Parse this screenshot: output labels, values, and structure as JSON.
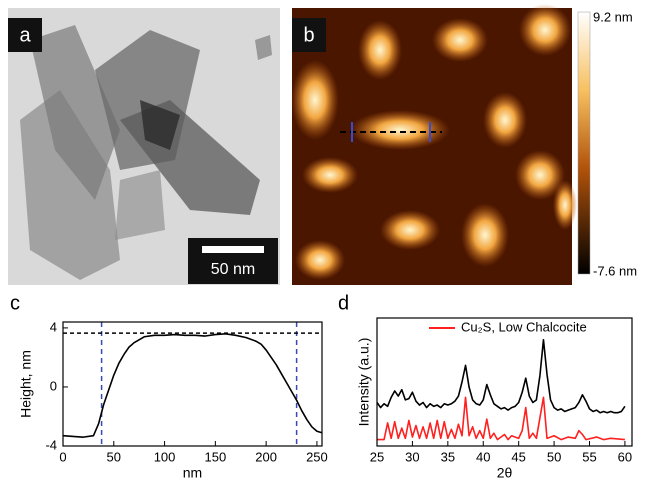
{
  "figure": {
    "panel_a": {
      "label": "a",
      "scale_bar": "50 nm"
    },
    "panel_b": {
      "label": "b",
      "colorbar_max": "9.2 nm",
      "colorbar_min": "-7.6 nm"
    },
    "panel_c": {
      "label": "c"
    },
    "panel_d": {
      "label": "d"
    }
  },
  "chart_data": [
    {
      "type": "line",
      "xlabel": "nm",
      "ylabel": "Height, nm",
      "x": [
        0,
        10,
        20,
        30,
        35,
        40,
        45,
        50,
        55,
        60,
        65,
        70,
        80,
        90,
        100,
        110,
        120,
        130,
        140,
        150,
        160,
        170,
        180,
        190,
        195,
        200,
        205,
        210,
        215,
        220,
        225,
        230,
        235,
        240,
        245,
        250,
        255
      ],
      "series": [
        {
          "color": "#000000",
          "values": [
            -3.3,
            -3.35,
            -3.4,
            -3.3,
            -2.5,
            -1.2,
            -0.2,
            0.8,
            1.6,
            2.2,
            2.7,
            3.0,
            3.4,
            3.5,
            3.5,
            3.55,
            3.5,
            3.5,
            3.45,
            3.55,
            3.6,
            3.5,
            3.35,
            3.1,
            2.9,
            2.5,
            2.0,
            1.5,
            0.9,
            0.3,
            -0.3,
            -0.9,
            -1.6,
            -2.2,
            -2.7,
            -3.0,
            -3.1
          ]
        }
      ],
      "reference_lines": {
        "x": [
          38,
          230
        ],
        "y": [
          3.65
        ],
        "x_color": "#3a4bb0",
        "y_color": "#000000"
      },
      "xlim": [
        0,
        255
      ],
      "ylim": [
        -4,
        4.4
      ],
      "xticks": [
        0,
        50,
        100,
        150,
        200,
        250
      ],
      "yticks": [
        -4,
        0,
        4
      ]
    },
    {
      "type": "line",
      "xlabel": "2θ",
      "ylabel": "Intensity (a.u.)",
      "legend": "upper right",
      "series": [
        {
          "color": "#000000",
          "x": [
            25,
            25.5,
            26,
            26.5,
            27,
            27.5,
            28,
            28.5,
            29,
            29.5,
            30,
            30.5,
            31,
            31.5,
            32,
            32.5,
            33,
            33.5,
            34,
            34.5,
            35,
            35.5,
            36,
            36.5,
            37,
            37.5,
            38,
            38.5,
            39,
            39.5,
            40,
            40.5,
            41,
            41.5,
            42,
            42.5,
            43,
            43.5,
            44,
            44.5,
            45,
            45.5,
            46,
            46.5,
            47,
            47.5,
            48,
            48.5,
            49,
            49.5,
            50,
            50.5,
            51,
            51.5,
            52,
            52.5,
            53,
            53.5,
            54,
            54.5,
            55,
            55.5,
            56,
            56.5,
            57,
            57.5,
            58,
            58.5,
            59,
            59.5,
            60
          ],
          "values": [
            3.4,
            3.0,
            3.3,
            3.1,
            3.8,
            4.3,
            3.9,
            4.4,
            3.6,
            3.7,
            4.2,
            3.5,
            3.2,
            3.4,
            3.0,
            3.3,
            3.1,
            3.2,
            3.0,
            3.3,
            3.2,
            3.3,
            3.5,
            3.9,
            5.0,
            6.3,
            4.6,
            3.6,
            3.3,
            3.2,
            3.6,
            4.8,
            4.0,
            3.3,
            3.1,
            2.9,
            3.0,
            2.8,
            3.0,
            3.1,
            3.4,
            4.2,
            5.3,
            3.9,
            3.4,
            3.6,
            5.5,
            8.3,
            5.6,
            3.6,
            3.0,
            2.8,
            2.9,
            2.7,
            2.8,
            2.9,
            3.0,
            3.4,
            4.0,
            3.5,
            2.9,
            2.7,
            2.8,
            2.6,
            2.7,
            2.6,
            2.7,
            2.6,
            2.6,
            2.7,
            3.1
          ]
        },
        {
          "name": "Cu₂S, Low Chalcocite",
          "color": "#ff2020",
          "x": [
            25,
            26,
            26.5,
            27,
            27.5,
            28,
            28.5,
            29,
            29.5,
            30,
            30.5,
            31,
            31.5,
            32,
            32.5,
            33,
            33.5,
            34,
            34.5,
            35,
            35.5,
            36,
            36.5,
            37,
            37.5,
            38,
            38.5,
            39,
            39.5,
            40,
            40.5,
            41,
            41.5,
            42,
            43,
            43.5,
            44,
            45,
            45.5,
            46,
            46.5,
            47,
            47.5,
            48.5,
            49,
            50,
            51,
            52,
            53,
            53.5,
            54,
            54.5,
            56,
            57,
            58,
            60
          ],
          "values": [
            0.5,
            0.5,
            1.8,
            0.6,
            1.9,
            0.6,
            1.4,
            0.6,
            2.0,
            0.7,
            1.6,
            0.6,
            1.5,
            0.6,
            1.8,
            0.6,
            2.0,
            0.6,
            1.9,
            0.6,
            1.3,
            0.6,
            1.7,
            0.8,
            3.8,
            0.8,
            1.5,
            0.6,
            1.2,
            0.6,
            2.1,
            0.6,
            1.0,
            0.5,
            0.9,
            0.5,
            0.8,
            0.6,
            1.2,
            3.0,
            0.6,
            1.0,
            0.6,
            3.8,
            0.6,
            0.8,
            0.5,
            0.7,
            0.6,
            1.2,
            0.9,
            0.5,
            0.7,
            0.5,
            0.6,
            0.5
          ]
        }
      ],
      "xlim": [
        25,
        61
      ],
      "ylim": [
        0,
        10
      ],
      "xticks": [
        25,
        30,
        35,
        40,
        45,
        50,
        55,
        60
      ]
    }
  ]
}
